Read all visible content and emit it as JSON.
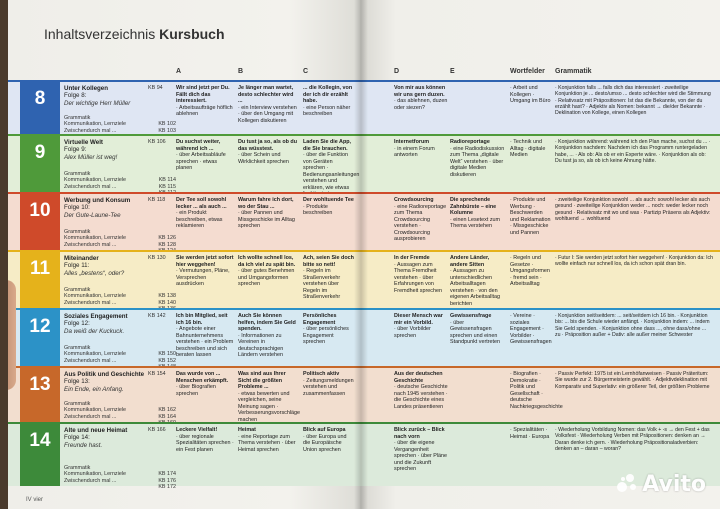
{
  "header": {
    "title_prefix": "Inhaltsverzeichnis ",
    "title_bold": "Kursbuch"
  },
  "columns_left": [
    "A",
    "B",
    "C"
  ],
  "columns_right": [
    "D",
    "E",
    "Wortfelder",
    "Grammatik"
  ],
  "colors": {
    "u8": "#2f63b0",
    "u8bg": "#dfe6f3",
    "u9": "#4f9a3a",
    "u9bg": "#e2eed8",
    "u10": "#cf4a2a",
    "u10bg": "#f4dcd0",
    "u11": "#e5b21b",
    "u11bg": "#f6ecc6",
    "u12": "#2c92c7",
    "u12bg": "#d7e9f2",
    "u13": "#c7682a",
    "u13bg": "#f2decf",
    "u14": "#3d8a3a",
    "u14bg": "#dceadb"
  },
  "units": [
    {
      "num": "8",
      "title": "Unter Kollegen",
      "folge": "Folge 8:",
      "sub": "Der wichtige Herr Müller",
      "kb": "KB 94",
      "meta": [
        {
          "l": "Grammatik",
          "p": "KB 102"
        },
        {
          "l": "Kommunikation, Lernziele",
          "p": "KB 103"
        },
        {
          "l": "Zwischendurch mal ...",
          "p": "KB 100"
        }
      ],
      "a": {
        "h": "Wir sind jetzt per Du. Fällt dich das interessiert.",
        "t": "· Arbeitsaufträge höflich ablehnen"
      },
      "b": {
        "h": "Je länger man wartet, desto schlechter wird ...",
        "t": "· ein Interview verstehen · über den Umgang mit Kollegen diskutieren"
      },
      "c": {
        "h": "... die Kollegin, von der ich dir erzählt habe.",
        "t": "· eine Person näher beschreiben"
      },
      "d": {
        "h": "Von mir aus können wir uns gern duzen.",
        "t": "· das ablehnen, duzen oder siezen?"
      },
      "e": {
        "h": "",
        "t": ""
      },
      "w": "· Arbeit und Kollegen · Umgang im Büro",
      "g": "· Konjunktion falls ... falls dich das interessiert · zweiteilige Konjunktion je ... desto/umso ... desto schlechter wird die Stimmung · Relativsatz mit Präpositionen: Ist das die Bekannte, von der du erzählt hast? · Adjektiv als Nomen: bekannt → die/der Bekannte · Deklination von Kollege, einen Kollegen"
    },
    {
      "num": "9",
      "title": "Virtuelle Welt",
      "folge": "Folge 9:",
      "sub": "Alex Müller ist weg!",
      "kb": "KB 106",
      "meta": [
        {
          "l": "Grammatik",
          "p": "KB 114"
        },
        {
          "l": "Kommunikation, Lernziele",
          "p": "KB 115"
        },
        {
          "l": "Zwischendurch mal ...",
          "p": "KB 112"
        }
      ],
      "a": {
        "h": "Du suchst weiter, während ich ...",
        "t": "· über Arbeitsabläufe sprechen · etwas planen"
      },
      "b": {
        "h": "Du tust ja so, als ob du das wüsstest.",
        "t": "· über Schein und Wirklichkeit sprechen"
      },
      "c": {
        "h": "Laden Sie die App, die Sie brauchen.",
        "t": "· über die Funktion von Geräten sprechen · Bedienungsanleitungen verstehen und erklären, wie etwas funktioniert"
      },
      "d": {
        "h": "Internetforum",
        "t": "· in einem Forum antworten"
      },
      "e": {
        "h": "Radioreportage",
        "t": "· eine Radiodiskussion zum Thema „digitale Welt“ verstehen · über digitale Medien diskutieren"
      },
      "w": "· Technik und Alltag · digitale Medien",
      "g": "· Konjunktion während: während ich den Plan mache, suchst du ... · Konjunktion nachdem: Nachdem ich das Programm runtergeladen habe, ... · Als ob: Als ob er ein Experte wäre. · Konjunktion als ob: Du tust ja so, als ob ich keine Ahnung hätte."
    },
    {
      "num": "10",
      "title": "Werbung und Konsum",
      "folge": "Folge 10:",
      "sub": "Der Gute-Laune-Tee",
      "kb": "KB 118",
      "meta": [
        {
          "l": "Grammatik",
          "p": "KB 126"
        },
        {
          "l": "Kommunikation, Lernziele",
          "p": "KB 128"
        },
        {
          "l": "Zwischendurch mal ...",
          "p": "KB 124"
        }
      ],
      "a": {
        "h": "Der Tee soll sowohl lecker ... als auch ...",
        "t": "· ein Produkt beschreiben, etwas reklamieren"
      },
      "b": {
        "h": "Warum fahre ich dort, wo der Stau ...",
        "t": "· über Pannen und Missgeschicke im Alltag sprechen"
      },
      "c": {
        "h": "Der wohltuende Tee",
        "t": "· Produkte beschreiben"
      },
      "d": {
        "h": "Crowdsourcing",
        "t": "· eine Radioreportage zum Thema Crowdsourcing verstehen · Crowdsourcing ausprobieren"
      },
      "e": {
        "h": "Die sprechende Zahnbürste – eine Kolumne",
        "t": "· einen Lesetext zum Thema verstehen"
      },
      "w": "· Produkte und Werbung · Beschwerden und Reklamation · Missgeschicke und Pannen",
      "g": "· zweiteilige Konjunktion sowohl ... als auch: sowohl lecker als auch gesund · zweiteilige Konjunktion weder ... noch: weder lecker noch gesund · Relativsatz mit wo und was · Partizip Präsens als Adjektiv: wohltuend → wohltuend"
    },
    {
      "num": "11",
      "title": "Miteinander",
      "folge": "Folge 11:",
      "sub": "Alles „bestens“, oder?",
      "kb": "KB 130",
      "meta": [
        {
          "l": "Grammatik",
          "p": "KB 138"
        },
        {
          "l": "Kommunikation, Lernziele",
          "p": "KB 140"
        },
        {
          "l": "Zwischendurch mal ...",
          "p": "KB 136"
        }
      ],
      "a": {
        "h": "Sie werden jetzt sofort hier weggehen!",
        "t": "· Vermutungen, Pläne, Versprechen ausdrücken"
      },
      "b": {
        "h": "Ich wollte schnell los, da ich viel zu spät bin.",
        "t": "· über gutes Benehmen und Umgangsformen sprechen"
      },
      "c": {
        "h": "Ach, seien Sie doch bitte so nett!",
        "t": "· Regeln im Straßenverkehr verstehen über Regeln im Straßenverkehr"
      },
      "d": {
        "h": "In der Fremde",
        "t": "· Aussagen zum Thema Fremdheit verstehen · über Erfahrungen von Fremdheit sprechen"
      },
      "e": {
        "h": "Andere Länder, andere Sitten",
        "t": "· Aussagen zu unterschiedlichen Arbeitsalltagen verstehen · von den eigenen Arbeitsalltag berichten"
      },
      "w": "· Regeln und Gesetze · Umgangsformen · fremd sein · Arbeitsalltag",
      "g": "· Futur I: Sie werden jetzt sofort hier weggehen! · Konjunktion da: Ich wollte einfach nur schnell los, da ich schon spät dran bin."
    },
    {
      "num": "12",
      "title": "Soziales Engagement",
      "folge": "Folge 12:",
      "sub": "Da weiß der Kuckuck.",
      "kb": "KB 142",
      "meta": [
        {
          "l": "Grammatik",
          "p": "KB 150"
        },
        {
          "l": "Kommunikation, Lernziele",
          "p": "KB 152"
        },
        {
          "l": "Zwischendurch mal ...",
          "p": "KB 148"
        }
      ],
      "a": {
        "h": "Ich bin Mitglied, seit ich 16 bin.",
        "t": "· Angebote einer Bahnunternehmens verstehen · ein Problem beschreiben und sich beraten lassen"
      },
      "b": {
        "h": "Auch Sie können helfen, indem Sie Geld spenden.",
        "t": "· Informationen zu Vereinen in deutschsprachigen Ländern verstehen"
      },
      "c": {
        "h": "Persönliches Engagement",
        "t": "· über persönliches Engagement sprechen"
      },
      "d": {
        "h": "Dieser Mensch war mir ein Vorbild.",
        "t": "· über Vorbilder sprechen"
      },
      "e": {
        "h": "Gewissensfrage",
        "t": "· über Gewissensfragen sprechen und einen Standpunkt vertreten"
      },
      "w": "· Vereine · soziales Engagement · Vorbilder · Gewissensfragen",
      "g": "· Konjunktion seit/seitdem: ... seit/seitdem ich 16 bin. · Konjunktion bis: ... bis die Schule wieder anfängt. · Konjunktion indem: ... indem Sie Geld spenden. · Konjunktion ohne dass ..., ohne dass/ohne ... zu · Präposition außer + Dativ: alle außer meiner Schwester"
    },
    {
      "num": "13",
      "title": "Aus Politik und Geschichte",
      "folge": "Folge 13:",
      "sub": "Ein Ende, ein Anfang.",
      "kb": "KB 154",
      "meta": [
        {
          "l": "Grammatik",
          "p": "KB 162"
        },
        {
          "l": "Kommunikation, Lernziele",
          "p": "KB 164"
        },
        {
          "l": "Zwischendurch mal ...",
          "p": "KB 160"
        }
      ],
      "a": {
        "h": "Das wurde von ... Menschen erkämpft.",
        "t": "· über Biografien sprechen"
      },
      "b": {
        "h": "Was sind aus Ihrer Sicht die größten Probleme ...",
        "t": "· etwas bewerten und vergleichen, seine Meinung sagen · Verbesserungsvorschläge machen"
      },
      "c": {
        "h": "Politisch aktiv",
        "t": "· Zeitungsmeldungen verstehen und zusammenfassen"
      },
      "d": {
        "h": "Aus der deutschen Geschichte",
        "t": "· deutsche Geschichte nach 1945 verstehen · die Geschichte eines Landes präsentieren"
      },
      "e": {
        "h": "",
        "t": ""
      },
      "w": "· Biografien · Demokratie · Politik und Gesellschaft · deutsche Nachkriegsgeschichte",
      "g": "· Passiv Perfekt: 1975 ist ein Lernhöfanweisen · Passiv Präteritum: Sie wurde zur 2. Bürgermeisterin gewählt. · Adjektivdeklination mit Komparativ und Superlativ: ein größerer Teil, der größten Probleme"
    },
    {
      "num": "14",
      "title": "Alte und neue Heimat",
      "folge": "Folge 14:",
      "sub": "Freunde hast.",
      "kb": "KB 166",
      "meta": [
        {
          "l": "Grammatik",
          "p": "KB 174"
        },
        {
          "l": "Kommunikation, Lernziele",
          "p": "KB 176"
        },
        {
          "l": "Zwischendurch mal ...",
          "p": "KB 172"
        }
      ],
      "a": {
        "h": "Leckere Vielfalt!",
        "t": "· über regionale Spezialitäten sprechen · ein Fest planen"
      },
      "b": {
        "h": "Heimat",
        "t": "· eine Reportage zum Thema verstehen · über Heimat sprechen"
      },
      "c": {
        "h": "Blick auf Europa",
        "t": "· über Europa und die Europäische Union sprechen"
      },
      "d": {
        "h": "Blick zurück – Blick nach vorn",
        "t": "· über die eigene Vergangenheit sprechen · über Pläne und die Zukunft sprechen"
      },
      "e": {
        "h": "",
        "t": ""
      },
      "w": "· Spezialitäten · Heimat · Europa",
      "g": "· Wiederholung Vorbildung Nomen: das Volk + -s → den Fest + das Volksfest · Wiederholung Verben mit Präpositionen: denken an → Daran denke ich gern. · Wiederholung Präpositionaladverbien: denken an – daran – woran?"
    }
  ],
  "footer": {
    "page": "IV vier"
  },
  "watermark": {
    "text": "Avito"
  }
}
